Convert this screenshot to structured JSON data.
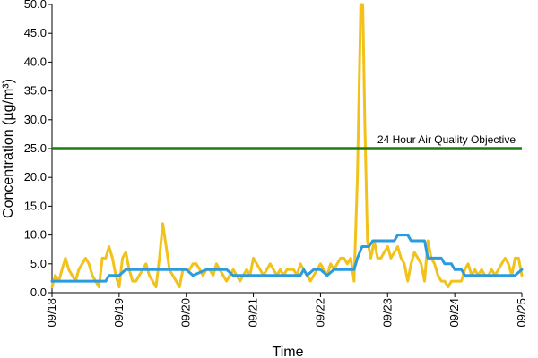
{
  "chart_data": {
    "type": "line",
    "xlabel": "Time",
    "ylabel": "Concentration (µg/m³)",
    "ylim": [
      0,
      50
    ],
    "y_ticks": [
      "0.0",
      "5.0",
      "10.0",
      "15.0",
      "20.0",
      "25.0",
      "30.0",
      "35.0",
      "40.0",
      "45.0",
      "50.0"
    ],
    "x_ticks": [
      "09/18",
      "09/19",
      "09/20",
      "09/21",
      "09/22",
      "09/23",
      "09/24",
      "09/25"
    ],
    "grid": false,
    "objective": {
      "label": "24 Hour Air Quality Objective",
      "value": 25,
      "color": "#1e7d12"
    },
    "series": [
      {
        "color": "#f2c21b",
        "points": [
          [
            0.0,
            1
          ],
          [
            0.05,
            3
          ],
          [
            0.1,
            2
          ],
          [
            0.15,
            4
          ],
          [
            0.2,
            6
          ],
          [
            0.25,
            4
          ],
          [
            0.3,
            3
          ],
          [
            0.35,
            2
          ],
          [
            0.4,
            4
          ],
          [
            0.45,
            5
          ],
          [
            0.5,
            6
          ],
          [
            0.55,
            5
          ],
          [
            0.6,
            3
          ],
          [
            0.65,
            2
          ],
          [
            0.7,
            1
          ],
          [
            0.75,
            6
          ],
          [
            0.8,
            6
          ],
          [
            0.85,
            8
          ],
          [
            0.9,
            6
          ],
          [
            0.95,
            3
          ],
          [
            1.0,
            1
          ],
          [
            1.05,
            6
          ],
          [
            1.1,
            7
          ],
          [
            1.15,
            4
          ],
          [
            1.2,
            2
          ],
          [
            1.25,
            2
          ],
          [
            1.3,
            3
          ],
          [
            1.35,
            4
          ],
          [
            1.4,
            5
          ],
          [
            1.45,
            3
          ],
          [
            1.5,
            2
          ],
          [
            1.55,
            1
          ],
          [
            1.6,
            6
          ],
          [
            1.65,
            12
          ],
          [
            1.7,
            8
          ],
          [
            1.75,
            4
          ],
          [
            1.8,
            3
          ],
          [
            1.85,
            2
          ],
          [
            1.9,
            1
          ],
          [
            1.95,
            4
          ],
          [
            2.0,
            4
          ],
          [
            2.05,
            4
          ],
          [
            2.1,
            5
          ],
          [
            2.15,
            5
          ],
          [
            2.2,
            4
          ],
          [
            2.25,
            3
          ],
          [
            2.3,
            4
          ],
          [
            2.35,
            4
          ],
          [
            2.4,
            3
          ],
          [
            2.45,
            5
          ],
          [
            2.5,
            4
          ],
          [
            2.55,
            3
          ],
          [
            2.6,
            2
          ],
          [
            2.65,
            3
          ],
          [
            2.7,
            4
          ],
          [
            2.75,
            3
          ],
          [
            2.8,
            2
          ],
          [
            2.85,
            3
          ],
          [
            2.9,
            4
          ],
          [
            2.95,
            3
          ],
          [
            3.0,
            6
          ],
          [
            3.05,
            5
          ],
          [
            3.1,
            4
          ],
          [
            3.15,
            3
          ],
          [
            3.2,
            4
          ],
          [
            3.25,
            5
          ],
          [
            3.3,
            4
          ],
          [
            3.35,
            3
          ],
          [
            3.4,
            4
          ],
          [
            3.45,
            3
          ],
          [
            3.5,
            4
          ],
          [
            3.55,
            4
          ],
          [
            3.6,
            4
          ],
          [
            3.65,
            3
          ],
          [
            3.7,
            5
          ],
          [
            3.75,
            4
          ],
          [
            3.8,
            3
          ],
          [
            3.85,
            2
          ],
          [
            3.9,
            3
          ],
          [
            3.95,
            4
          ],
          [
            4.0,
            5
          ],
          [
            4.05,
            4
          ],
          [
            4.1,
            3
          ],
          [
            4.15,
            5
          ],
          [
            4.2,
            4
          ],
          [
            4.25,
            5
          ],
          [
            4.3,
            6
          ],
          [
            4.35,
            6
          ],
          [
            4.4,
            5
          ],
          [
            4.45,
            6
          ],
          [
            4.5,
            2
          ],
          [
            4.55,
            20
          ],
          [
            4.6,
            50
          ],
          [
            4.63,
            50
          ],
          [
            4.66,
            30
          ],
          [
            4.7,
            9
          ],
          [
            4.75,
            6
          ],
          [
            4.8,
            9
          ],
          [
            4.85,
            6
          ],
          [
            4.9,
            6
          ],
          [
            4.95,
            7
          ],
          [
            5.0,
            8
          ],
          [
            5.05,
            6
          ],
          [
            5.1,
            7
          ],
          [
            5.15,
            8
          ],
          [
            5.2,
            6
          ],
          [
            5.25,
            5
          ],
          [
            5.3,
            2
          ],
          [
            5.35,
            5
          ],
          [
            5.4,
            7
          ],
          [
            5.45,
            6
          ],
          [
            5.5,
            5
          ],
          [
            5.55,
            2
          ],
          [
            5.6,
            9
          ],
          [
            5.65,
            6
          ],
          [
            5.7,
            5
          ],
          [
            5.75,
            3
          ],
          [
            5.8,
            2
          ],
          [
            5.85,
            2
          ],
          [
            5.9,
            1
          ],
          [
            5.95,
            2
          ],
          [
            6.0,
            2
          ],
          [
            6.05,
            2
          ],
          [
            6.1,
            2
          ],
          [
            6.15,
            4
          ],
          [
            6.2,
            5
          ],
          [
            6.25,
            3
          ],
          [
            6.3,
            4
          ],
          [
            6.35,
            3
          ],
          [
            6.4,
            4
          ],
          [
            6.45,
            3
          ],
          [
            6.5,
            3
          ],
          [
            6.55,
            4
          ],
          [
            6.6,
            3
          ],
          [
            6.65,
            4
          ],
          [
            6.7,
            5
          ],
          [
            6.75,
            6
          ],
          [
            6.8,
            5
          ],
          [
            6.85,
            3
          ],
          [
            6.9,
            6
          ],
          [
            6.95,
            6
          ],
          [
            7.0,
            3
          ]
        ]
      },
      {
        "color": "#2b9be0",
        "points": [
          [
            0.0,
            2
          ],
          [
            0.8,
            2
          ],
          [
            0.85,
            3
          ],
          [
            1.0,
            3
          ],
          [
            1.1,
            4
          ],
          [
            2.0,
            4
          ],
          [
            2.1,
            3
          ],
          [
            2.3,
            4
          ],
          [
            2.6,
            4
          ],
          [
            2.7,
            3
          ],
          [
            3.7,
            3
          ],
          [
            3.75,
            4
          ],
          [
            3.8,
            3
          ],
          [
            3.9,
            4
          ],
          [
            4.0,
            4
          ],
          [
            4.1,
            3
          ],
          [
            4.2,
            4
          ],
          [
            4.4,
            4
          ],
          [
            4.5,
            4
          ],
          [
            4.55,
            6
          ],
          [
            4.62,
            8
          ],
          [
            4.72,
            8
          ],
          [
            4.78,
            9
          ],
          [
            5.1,
            9
          ],
          [
            5.15,
            10
          ],
          [
            5.3,
            10
          ],
          [
            5.35,
            9
          ],
          [
            5.55,
            9
          ],
          [
            5.6,
            6
          ],
          [
            5.8,
            6
          ],
          [
            5.85,
            5
          ],
          [
            5.95,
            5
          ],
          [
            6.0,
            4
          ],
          [
            6.1,
            4
          ],
          [
            6.15,
            3
          ],
          [
            6.9,
            3
          ],
          [
            7.0,
            4
          ]
        ]
      }
    ]
  }
}
